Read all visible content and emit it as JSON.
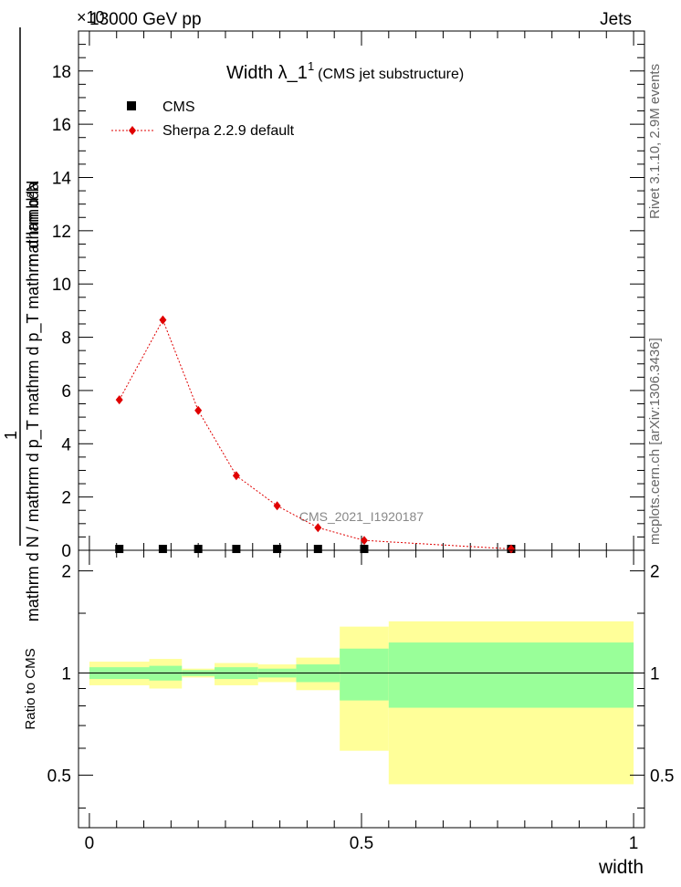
{
  "header": {
    "left": "13000 GeV pp",
    "right": "Jets",
    "multiplier": "×10"
  },
  "plot_title": {
    "main": "Width λ_1",
    "superscript": "1",
    "sub": "(CMS jet substructure)"
  },
  "side_labels": {
    "rivet": "Rivet 3.1.10,  2.9M events",
    "mcplots": "mcplots.cern.ch [arXiv:1306.3436]"
  },
  "watermark": "CMS_2021_I1920187",
  "chart_data": [
    {
      "type": "line",
      "ylabel_numerator": "mathrm d²N",
      "ylabel_denominator": "mathrm d N / mathrm d p_T mathrm d p_T mathrm d lambda",
      "ylabel_one": "1",
      "ylim": [
        0,
        19.5
      ],
      "xlim": [
        -0.02,
        1.02
      ],
      "yticks": [
        0,
        2,
        4,
        6,
        8,
        10,
        12,
        14,
        16,
        18
      ],
      "ytick_labels": [
        "0",
        "2",
        "4",
        "6",
        "8",
        "10",
        "12",
        "14",
        "16",
        "18"
      ],
      "legend": [
        {
          "name": "CMS",
          "marker": "square",
          "color": "#000000"
        },
        {
          "name": "Sherpa 2.2.9 default",
          "marker": "diamond",
          "color": "#e00000"
        }
      ],
      "series": [
        {
          "name": "CMS",
          "x": [
            0.055,
            0.135,
            0.2,
            0.27,
            0.345,
            0.42,
            0.505,
            0.775
          ],
          "values": [
            0.05,
            0.05,
            0.05,
            0.05,
            0.05,
            0.05,
            0.05,
            0.05
          ]
        },
        {
          "name": "Sherpa 2.2.9 default",
          "x": [
            0.055,
            0.135,
            0.2,
            0.27,
            0.345,
            0.42,
            0.505,
            0.775
          ],
          "values": [
            5.65,
            8.65,
            5.25,
            2.8,
            1.67,
            0.85,
            0.37,
            0.05
          ]
        }
      ]
    },
    {
      "type": "area",
      "ylabel": "Ratio to CMS",
      "xlabel": "width",
      "ylim": [
        0.35,
        2.3
      ],
      "xlim": [
        -0.02,
        1.02
      ],
      "yticks": [
        0.5,
        1,
        2
      ],
      "ytick_labels": [
        "0.5",
        "1",
        "2"
      ],
      "xticks": [
        0,
        0.5,
        1
      ],
      "xtick_labels": [
        "0",
        "0.5",
        "1"
      ],
      "bins": [
        {
          "lo": 0.0,
          "hi": 0.11,
          "inner": [
            0.96,
            1.04
          ],
          "outer": [
            0.92,
            1.08
          ]
        },
        {
          "lo": 0.11,
          "hi": 0.17,
          "inner": [
            0.95,
            1.05
          ],
          "outer": [
            0.9,
            1.1
          ]
        },
        {
          "lo": 0.17,
          "hi": 0.23,
          "inner": [
            0.98,
            1.02
          ],
          "outer": [
            0.97,
            1.03
          ]
        },
        {
          "lo": 0.23,
          "hi": 0.31,
          "inner": [
            0.96,
            1.04
          ],
          "outer": [
            0.92,
            1.07
          ]
        },
        {
          "lo": 0.31,
          "hi": 0.38,
          "inner": [
            0.97,
            1.03
          ],
          "outer": [
            0.94,
            1.06
          ]
        },
        {
          "lo": 0.38,
          "hi": 0.46,
          "inner": [
            0.94,
            1.06
          ],
          "outer": [
            0.89,
            1.11
          ]
        },
        {
          "lo": 0.46,
          "hi": 0.55,
          "inner": [
            0.83,
            1.18
          ],
          "outer": [
            0.59,
            1.37
          ]
        },
        {
          "lo": 0.55,
          "hi": 1.0,
          "inner": [
            0.79,
            1.23
          ],
          "outer": [
            0.47,
            1.42
          ]
        }
      ],
      "inner_color": "#99ff99",
      "outer_color": "#ffff99",
      "reference": 1
    }
  ]
}
